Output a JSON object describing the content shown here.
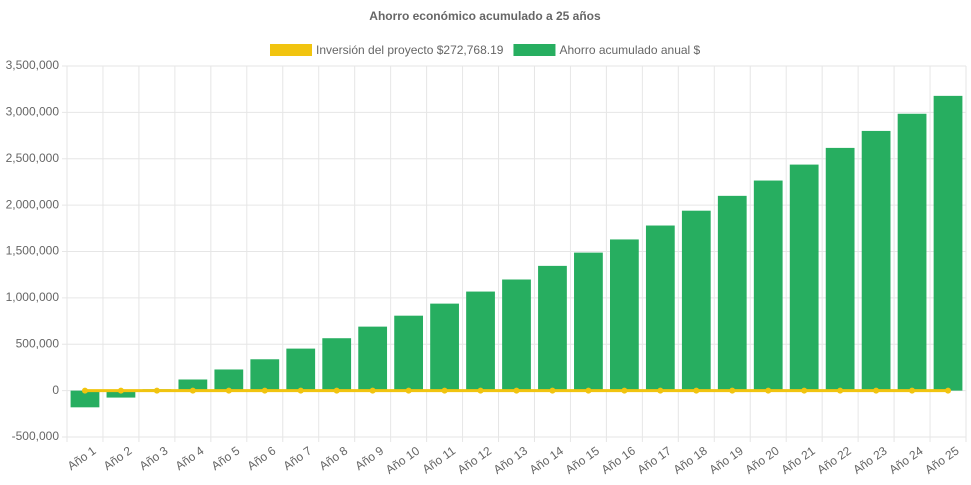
{
  "chart_data": {
    "type": "bar",
    "title": "Ahorro económico acumulado a 25 años",
    "categories": [
      "Año 1",
      "Año 2",
      "Año 3",
      "Año 4",
      "Año 5",
      "Año 6",
      "Año 7",
      "Año 8",
      "Año 9",
      "Año 10",
      "Año 11",
      "Año 12",
      "Año 13",
      "Año 14",
      "Año 15",
      "Año 16",
      "Año 17",
      "Año 18",
      "Año 19",
      "Año 20",
      "Año 21",
      "Año 22",
      "Año 23",
      "Año 24",
      "Año 25"
    ],
    "series": [
      {
        "name": "Inversión del proyecto $272,768.19",
        "type": "line",
        "color": "#f1c40f",
        "values": [
          0,
          0,
          0,
          0,
          0,
          0,
          0,
          0,
          0,
          0,
          0,
          0,
          0,
          0,
          0,
          0,
          0,
          0,
          0,
          0,
          0,
          0,
          0,
          0,
          0
        ]
      },
      {
        "name": "Ahorro acumulado anual $",
        "type": "bar",
        "color": "#27ae60",
        "values": [
          -180000,
          -75000,
          15000,
          120000,
          228000,
          338000,
          453000,
          565000,
          690000,
          808000,
          938000,
          1068000,
          1198000,
          1345000,
          1488000,
          1630000,
          1780000,
          1940000,
          2100000,
          2265000,
          2437000,
          2617000,
          2800000,
          2985000,
          3178000
        ]
      }
    ],
    "ylim": [
      -500000,
      3500000
    ],
    "yticks": [
      {
        "value": -500000,
        "label": "-500,000"
      },
      0,
      {
        "value": 500000,
        "label": "500,000"
      },
      {
        "value": 1000000,
        "label": "1,000,000"
      },
      {
        "value": 1500000,
        "label": "1,500,000"
      },
      {
        "value": 2000000,
        "label": "2,000,000"
      },
      {
        "value": 2500000,
        "label": "2,500,000"
      },
      {
        "value": 3000000,
        "label": "3,000,000"
      },
      {
        "value": 3500000,
        "label": "3,500,000"
      }
    ],
    "grid": true,
    "legend": "top"
  }
}
